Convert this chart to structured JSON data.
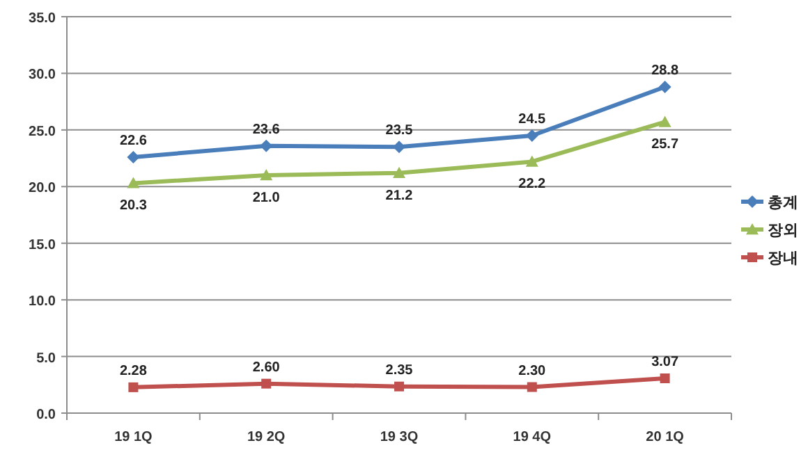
{
  "chart_data": {
    "type": "line",
    "categories": [
      "19 1Q",
      "19 2Q",
      "19 3Q",
      "19 4Q",
      "20 1Q"
    ],
    "series": [
      {
        "name": "총계",
        "color": "#4a7ebb",
        "marker": "diamond",
        "values": [
          22.6,
          23.6,
          23.5,
          24.5,
          28.8
        ],
        "value_labels": [
          "22.6",
          "23.6",
          "23.5",
          "24.5",
          "28.8"
        ]
      },
      {
        "name": "장외",
        "color": "#9bbb59",
        "marker": "triangle",
        "values": [
          20.3,
          21.0,
          21.2,
          22.2,
          25.7
        ],
        "value_labels": [
          "20.3",
          "21.0",
          "21.2",
          "22.2",
          "25.7"
        ]
      },
      {
        "name": "장내",
        "color": "#c0504d",
        "marker": "square",
        "values": [
          2.28,
          2.6,
          2.35,
          2.3,
          3.07
        ],
        "value_labels": [
          "2.28",
          "2.60",
          "2.35",
          "2.30",
          "3.07"
        ]
      }
    ],
    "ylim": [
      0,
      35
    ],
    "yticks": [
      {
        "value": 0,
        "label": "0.0"
      },
      {
        "value": 5,
        "label": "5.0"
      },
      {
        "value": 10,
        "label": "10.0"
      },
      {
        "value": 15,
        "label": "15.0"
      },
      {
        "value": 20,
        "label": "20.0"
      },
      {
        "value": 25,
        "label": "25.0"
      },
      {
        "value": 30,
        "label": "30.0"
      },
      {
        "value": 35,
        "label": "35.0"
      }
    ],
    "grid": "y",
    "legend": "right"
  }
}
